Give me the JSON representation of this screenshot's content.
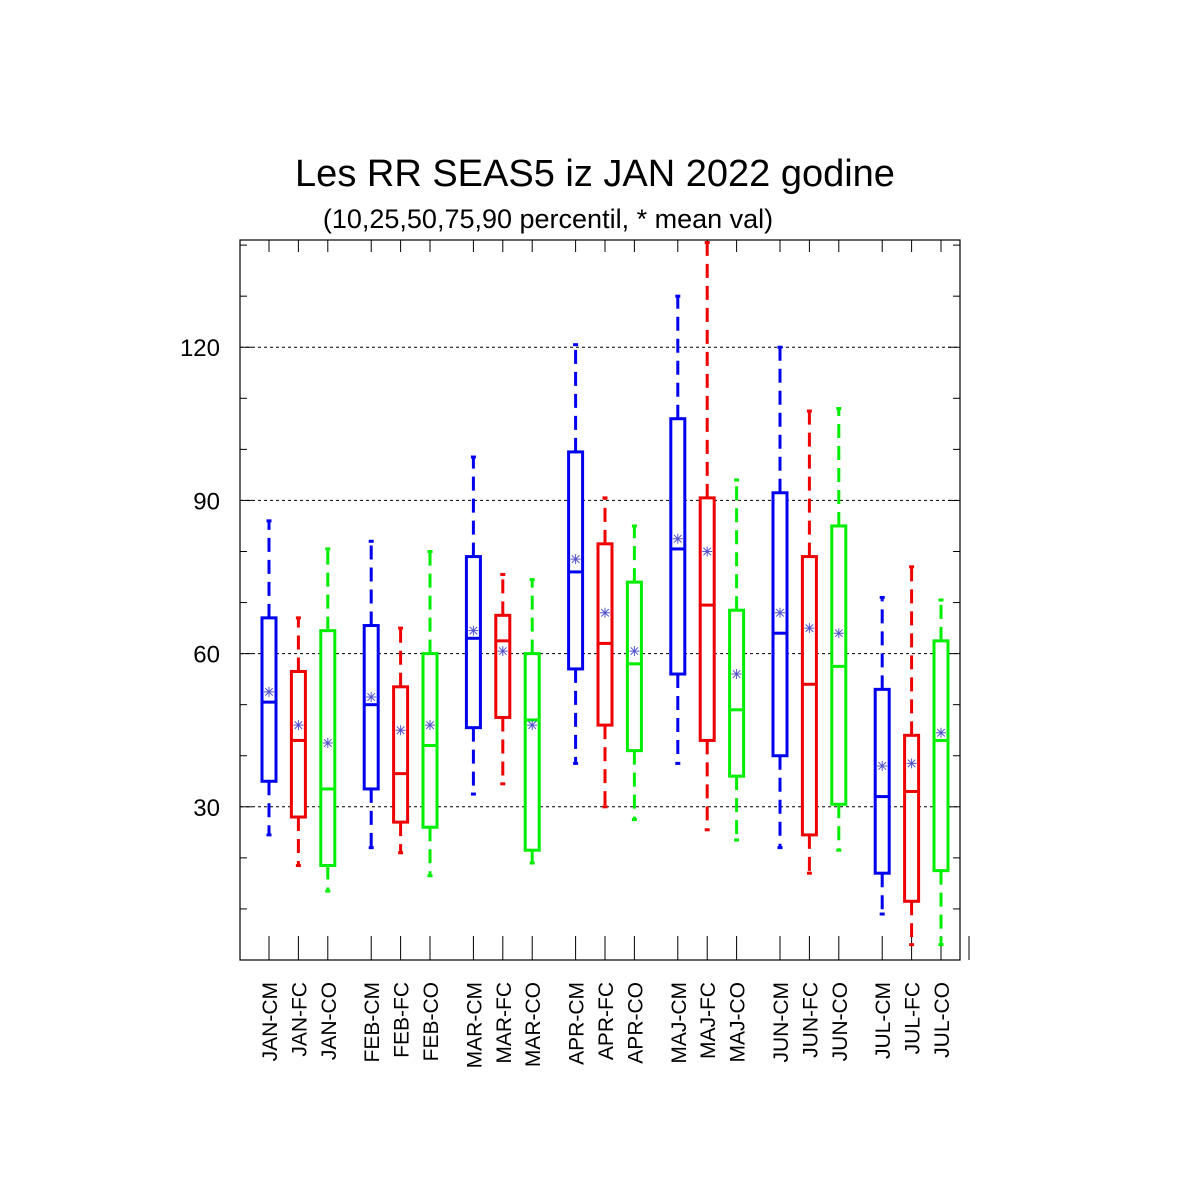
{
  "chart_data": {
    "type": "boxplot",
    "title": "Les RR SEAS5 iz JAN 2022 godine",
    "subtitle": "(10,25,50,75,90 percentil, * mean val)",
    "xlabel": "",
    "ylabel": "",
    "ylim": [
      0,
      141
    ],
    "yticks_major": [
      30,
      60,
      90,
      120
    ],
    "yticks_minor_step": 10,
    "grid": "dashed horizontal at major ticks",
    "legend": "none",
    "colors": {
      "CM": "#0000ee",
      "FC": "#ee0000",
      "CO": "#00ee00",
      "mean_marker": "#5555cc"
    },
    "groups": [
      "JAN",
      "FEB",
      "MAR",
      "APR",
      "MAJ",
      "JUN",
      "JUL"
    ],
    "boxes": [
      {
        "label": "JAN-CM",
        "series": "CM",
        "p10": 24.5,
        "p25": 35,
        "p50": 50.5,
        "p75": 67,
        "p90": 86,
        "mean": 52.5
      },
      {
        "label": "JAN-FC",
        "series": "FC",
        "p10": 18.5,
        "p25": 28,
        "p50": 43,
        "p75": 56.5,
        "p90": 67,
        "mean": 46
      },
      {
        "label": "JAN-CO",
        "series": "CO",
        "p10": 13.5,
        "p25": 18.5,
        "p50": 33.5,
        "p75": 64.5,
        "p90": 80.5,
        "mean": 42.5
      },
      {
        "label": "FEB-CM",
        "series": "CM",
        "p10": 22,
        "p25": 33.5,
        "p50": 50,
        "p75": 65.5,
        "p90": 82,
        "mean": 51.5
      },
      {
        "label": "FEB-FC",
        "series": "FC",
        "p10": 21,
        "p25": 27,
        "p50": 36.5,
        "p75": 53.5,
        "p90": 65,
        "mean": 45
      },
      {
        "label": "FEB-CO",
        "series": "CO",
        "p10": 16.5,
        "p25": 26,
        "p50": 42,
        "p75": 60,
        "p90": 80,
        "mean": 46
      },
      {
        "label": "MAR-CM",
        "series": "CM",
        "p10": 32.5,
        "p25": 45.5,
        "p50": 63,
        "p75": 79,
        "p90": 98.5,
        "mean": 64.5
      },
      {
        "label": "MAR-FC",
        "series": "FC",
        "p10": 34.5,
        "p25": 47.5,
        "p50": 62.5,
        "p75": 67.5,
        "p90": 75.5,
        "mean": 60.5
      },
      {
        "label": "MAR-CO",
        "series": "CO",
        "p10": 19,
        "p25": 21.5,
        "p50": 47,
        "p75": 60,
        "p90": 74.5,
        "mean": 46
      },
      {
        "label": "APR-CM",
        "series": "CM",
        "p10": 38.5,
        "p25": 57,
        "p50": 76,
        "p75": 99.5,
        "p90": 120.5,
        "mean": 78.5
      },
      {
        "label": "APR-FC",
        "series": "FC",
        "p10": 30,
        "p25": 46,
        "p50": 62,
        "p75": 81.5,
        "p90": 90.5,
        "mean": 68
      },
      {
        "label": "APR-CO",
        "series": "CO",
        "p10": 27.5,
        "p25": 41,
        "p50": 58,
        "p75": 74,
        "p90": 85,
        "mean": 60.5
      },
      {
        "label": "MAJ-CM",
        "series": "CM",
        "p10": 38.5,
        "p25": 56,
        "p50": 80.5,
        "p75": 106,
        "p90": 130,
        "mean": 82.5
      },
      {
        "label": "MAJ-FC",
        "series": "FC",
        "p10": 25.5,
        "p25": 43,
        "p50": 69.5,
        "p75": 90.5,
        "p90": 140.5,
        "mean": 80
      },
      {
        "label": "MAJ-CO",
        "series": "CO",
        "p10": 23.5,
        "p25": 36,
        "p50": 49,
        "p75": 68.5,
        "p90": 94,
        "mean": 56
      },
      {
        "label": "JUN-CM",
        "series": "CM",
        "p10": 22,
        "p25": 40,
        "p50": 64,
        "p75": 91.5,
        "p90": 120,
        "mean": 68
      },
      {
        "label": "JUN-FC",
        "series": "FC",
        "p10": 17,
        "p25": 24.5,
        "p50": 54,
        "p75": 79,
        "p90": 107.5,
        "mean": 65
      },
      {
        "label": "JUN-CO",
        "series": "CO",
        "p10": 21.5,
        "p25": 30.5,
        "p50": 57.5,
        "p75": 85,
        "p90": 108,
        "mean": 64
      },
      {
        "label": "JUL-CM",
        "series": "CM",
        "p10": 9,
        "p25": 17,
        "p50": 32,
        "p75": 53,
        "p90": 71,
        "mean": 38
      },
      {
        "label": "JUL-FC",
        "series": "FC",
        "p10": 3,
        "p25": 11.5,
        "p50": 33,
        "p75": 44,
        "p90": 77,
        "mean": 38.5
      },
      {
        "label": "JUL-CO",
        "series": "CO",
        "p10": 3,
        "p25": 17.5,
        "p50": 43,
        "p75": 62.5,
        "p90": 70.5,
        "mean": 44.5
      }
    ]
  }
}
